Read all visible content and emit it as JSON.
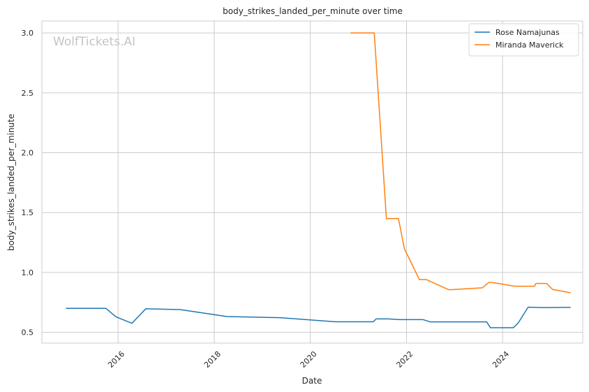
{
  "watermark": "WolfTickets.AI",
  "chart_data": {
    "type": "line",
    "title": "body_strikes_landed_per_minute over time",
    "xlabel": "Date",
    "ylabel": "body_strikes_landed_per_minute",
    "x_type": "date",
    "xlim": [
      "2014-06-01",
      "2025-09-01"
    ],
    "ylim": [
      0.41,
      3.1
    ],
    "x_ticks": [
      {
        "date": "2016-01-01",
        "label": "2016"
      },
      {
        "date": "2018-01-01",
        "label": "2018"
      },
      {
        "date": "2020-01-01",
        "label": "2020"
      },
      {
        "date": "2022-01-01",
        "label": "2022"
      },
      {
        "date": "2024-01-01",
        "label": "2024"
      }
    ],
    "y_ticks": [
      0.5,
      1.0,
      1.5,
      2.0,
      2.5,
      3.0
    ],
    "y_tick_labels": [
      "0.5",
      "1.0",
      "1.5",
      "2.0",
      "2.5",
      "3.0"
    ],
    "grid": true,
    "legend_position": "top-right",
    "series": [
      {
        "name": "Rose Namajunas",
        "color": "#1f77b4",
        "points": [
          [
            "2014-12-01",
            0.7
          ],
          [
            "2015-10-01",
            0.7
          ],
          [
            "2015-12-15",
            0.63
          ],
          [
            "2016-04-15",
            0.575
          ],
          [
            "2016-07-30",
            0.697
          ],
          [
            "2017-04-15",
            0.69
          ],
          [
            "2018-04-07",
            0.632
          ],
          [
            "2019-05-15",
            0.622
          ],
          [
            "2020-07-10",
            0.588
          ],
          [
            "2021-04-24",
            0.588
          ],
          [
            "2021-05-15",
            0.612
          ],
          [
            "2021-08-15",
            0.612
          ],
          [
            "2021-11-06",
            0.606
          ],
          [
            "2022-05-07",
            0.606
          ],
          [
            "2022-07-01",
            0.587
          ],
          [
            "2023-09-02",
            0.587
          ],
          [
            "2023-10-01",
            0.538
          ],
          [
            "2024-03-23",
            0.538
          ],
          [
            "2024-04-30",
            0.58
          ],
          [
            "2024-07-13",
            0.71
          ],
          [
            "2024-11-01",
            0.706
          ],
          [
            "2025-06-01",
            0.708
          ]
        ]
      },
      {
        "name": "Miranda Maverick",
        "color": "#ff7f0e",
        "points": [
          [
            "2020-11-01",
            3.0
          ],
          [
            "2021-05-01",
            3.0
          ],
          [
            "2021-08-01",
            1.45
          ],
          [
            "2021-11-01",
            1.45
          ],
          [
            "2021-12-15",
            1.2
          ],
          [
            "2022-04-09",
            0.94
          ],
          [
            "2022-06-01",
            0.94
          ],
          [
            "2022-11-19",
            0.855
          ],
          [
            "2023-08-01",
            0.872
          ],
          [
            "2023-09-20",
            0.918
          ],
          [
            "2023-11-01",
            0.913
          ],
          [
            "2024-04-01",
            0.885
          ],
          [
            "2024-08-31",
            0.885
          ],
          [
            "2024-09-10",
            0.908
          ],
          [
            "2024-12-01",
            0.908
          ],
          [
            "2025-01-15",
            0.858
          ],
          [
            "2025-06-01",
            0.83
          ]
        ]
      }
    ]
  }
}
